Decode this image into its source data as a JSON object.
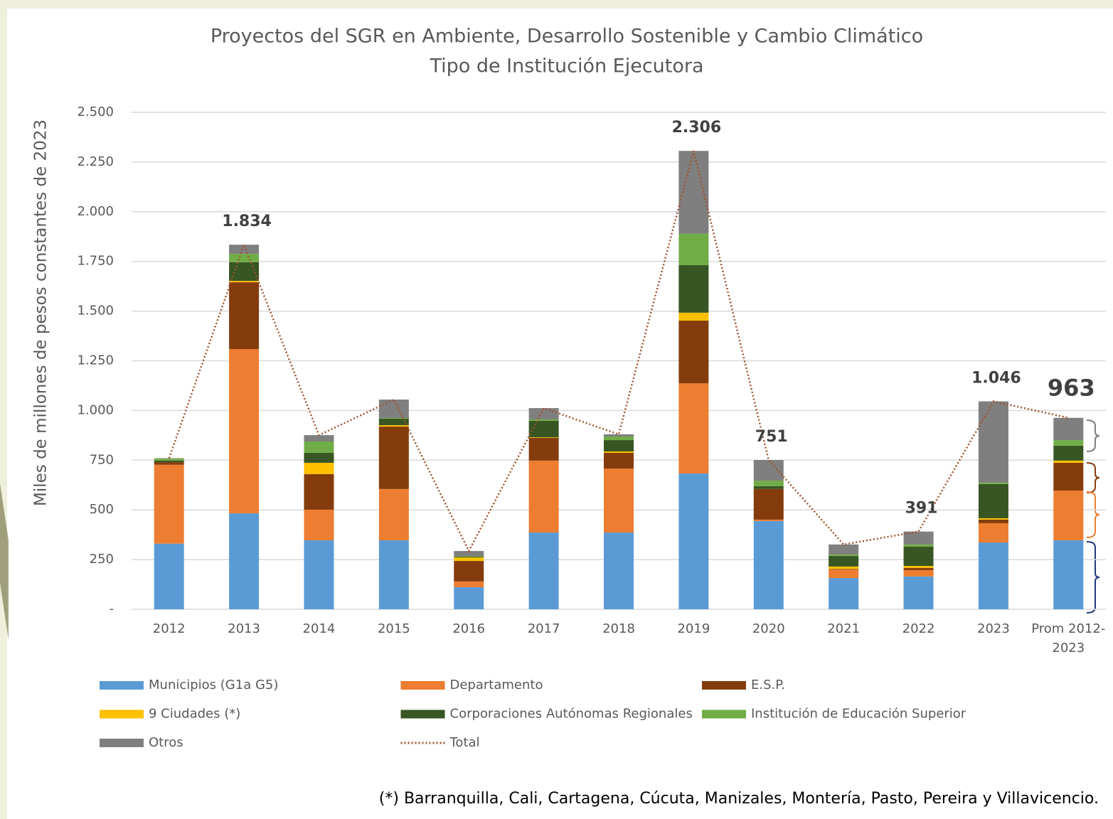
{
  "chart_data": {
    "type": "stacked_bar_line",
    "title": "Proyectos del SGR en Ambiente, Desarrollo Sostenible y Cambio Climático",
    "subtitle": "Tipo de Institución Ejecutora",
    "y_axis_label": "Miles de millones de pesos constantes de 2023",
    "footnote": "(*) Barranquilla, Cali, Cartagena, Cúcuta, Manizales, Montería, Pasto, Pereira y Villavicencio.",
    "categories": [
      "2012",
      "2013",
      "2014",
      "2015",
      "2016",
      "2017",
      "2018",
      "2019",
      "2020",
      "2021",
      "2022",
      "2023",
      "Prom 2012-2023"
    ],
    "ylim": [
      0,
      2500
    ],
    "yticks": [
      {
        "value": 0,
        "label": "-"
      },
      250,
      500,
      750,
      {
        "value": 1000,
        "label": "1.000"
      },
      {
        "value": 1250,
        "label": "1.250"
      },
      {
        "value": 1500,
        "label": "1.500"
      },
      {
        "value": 1750,
        "label": "1.750"
      },
      {
        "value": 2000,
        "label": "2.000"
      },
      {
        "value": 2250,
        "label": "2.250"
      },
      {
        "value": 2500,
        "label": "2.500"
      }
    ],
    "grid": true,
    "series": [
      {
        "name": "Municipios (G1a G5)",
        "color": "#5b9bd5",
        "values": [
          330,
          483,
          347,
          347,
          111,
          386,
          386,
          683,
          444,
          157,
          165,
          336,
          347
        ]
      },
      {
        "name": "Departamento",
        "color": "#ed7d31",
        "values": [
          397,
          826,
          154,
          258,
          29,
          362,
          322,
          454,
          7,
          43,
          32,
          97,
          250
        ]
      },
      {
        "name": "E.S.P.",
        "color": "#843c0c",
        "values": [
          13,
          336,
          179,
          314,
          103,
          114,
          79,
          315,
          154,
          3,
          11,
          18,
          140
        ]
      },
      {
        "name": "9 Ciudades (*)",
        "color": "#ffc000",
        "values": [
          0,
          7,
          57,
          7,
          18,
          3,
          7,
          40,
          0,
          12,
          10,
          7,
          11
        ]
      },
      {
        "name": "Corporaciones Autónomas Regionales",
        "color": "#375623",
        "values": [
          8,
          94,
          50,
          33,
          4,
          83,
          57,
          239,
          14,
          53,
          97,
          172,
          75
        ]
      },
      {
        "name": "Institución de Educación Superior",
        "color": "#70ad47",
        "values": [
          10,
          42,
          57,
          3,
          3,
          7,
          18,
          158,
          28,
          7,
          11,
          7,
          28
        ]
      },
      {
        "name": "Otros",
        "color": "#7f7f7f",
        "values": [
          2,
          46,
          32,
          93,
          25,
          57,
          11,
          417,
          104,
          51,
          65,
          409,
          112
        ]
      }
    ],
    "total": {
      "name": "Total",
      "color": "#a0522d",
      "values": [
        760,
        1834,
        876,
        1055,
        293,
        1012,
        880,
        2306,
        751,
        326,
        391,
        1046,
        963
      ],
      "value_labels": [
        null,
        "1.834",
        null,
        null,
        null,
        null,
        null,
        "2.306",
        "751",
        null,
        "391",
        "1.046",
        "963"
      ]
    }
  }
}
